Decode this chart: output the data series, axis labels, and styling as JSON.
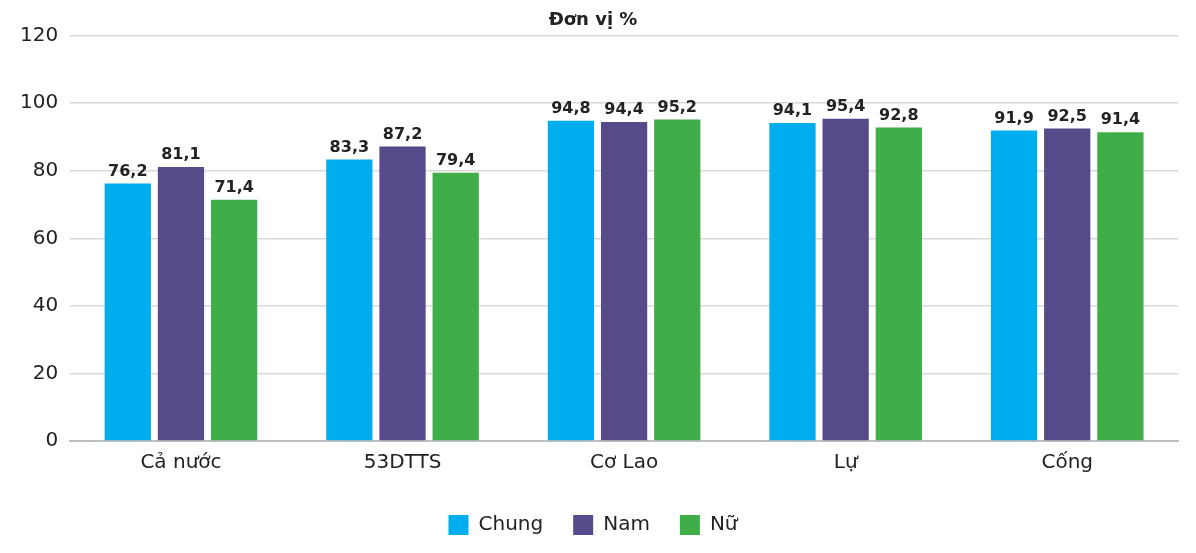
{
  "chart_data": {
    "type": "bar",
    "title": "Đơn vị %",
    "categories": [
      "Cả nước",
      "53DTTS",
      "Cơ Lao",
      "Lự",
      "Cống"
    ],
    "series": [
      {
        "name": "Chung",
        "color": "#00aeef",
        "values": [
          76.2,
          83.3,
          94.8,
          94.1,
          91.9
        ],
        "value_labels": [
          "76,2",
          "83,3",
          "94,8",
          "94,1",
          "91,9"
        ]
      },
      {
        "name": "Nam",
        "color": "#574a8a",
        "values": [
          81.1,
          87.2,
          94.4,
          95.4,
          92.5
        ],
        "value_labels": [
          "81,1",
          "87,2",
          "94,4",
          "95,4",
          "92,5"
        ]
      },
      {
        "name": "Nữ",
        "color": "#3fae49",
        "values": [
          71.4,
          79.4,
          95.2,
          92.8,
          91.4
        ],
        "value_labels": [
          "71,4",
          "79,4",
          "95,2",
          "92,8",
          "91,4"
        ]
      }
    ],
    "ylim": [
      0,
      120
    ],
    "yticks": [
      0,
      20,
      40,
      60,
      80,
      100,
      120
    ],
    "grid": "y",
    "legend": "bottom"
  }
}
